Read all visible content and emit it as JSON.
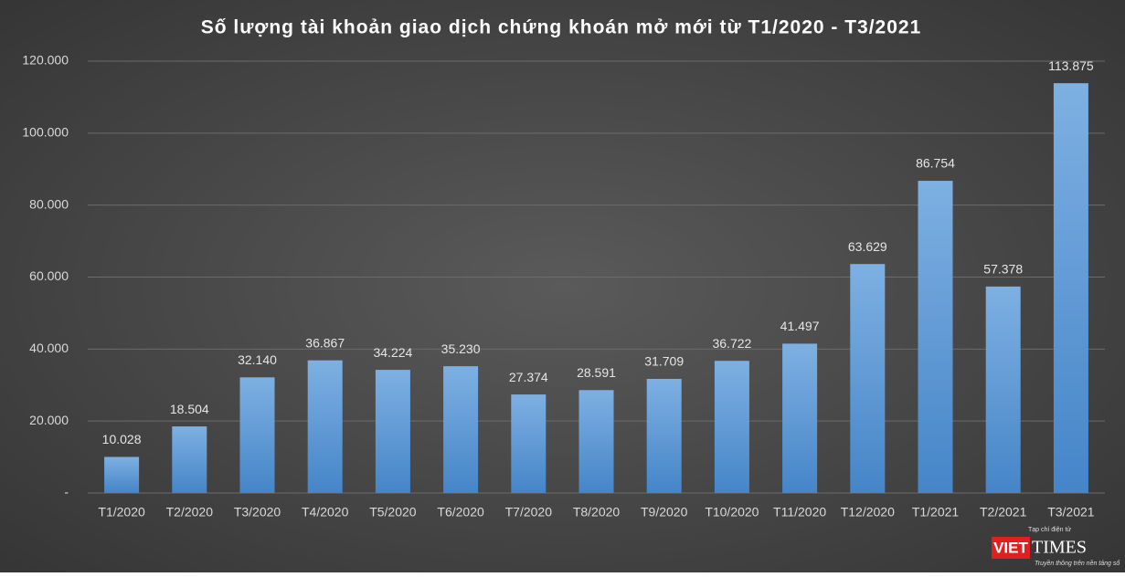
{
  "chart_data": {
    "type": "bar",
    "title": "Số lượng tài khoản giao dịch chứng khoán mở mới từ T1/2020 - T3/2021",
    "categories": [
      "T1/2020",
      "T2/2020",
      "T3/2020",
      "T4/2020",
      "T5/2020",
      "T6/2020",
      "T7/2020",
      "T8/2020",
      "T9/2020",
      "T10/2020",
      "T11/2020",
      "T12/2020",
      "T1/2021",
      "T2/2021",
      "T3/2021"
    ],
    "values": [
      10028,
      18504,
      32140,
      36867,
      34224,
      35230,
      27374,
      28591,
      31709,
      36722,
      41497,
      63629,
      86754,
      57378,
      113875
    ],
    "value_labels": [
      "10.028",
      "18.504",
      "32.140",
      "36.867",
      "34.224",
      "35.230",
      "27.374",
      "28.591",
      "31.709",
      "36.722",
      "41.497",
      "63.629",
      "86.754",
      "57.378",
      "113.875"
    ],
    "color": "#5b9bd5",
    "ylim": [
      0,
      120000
    ],
    "yticks": [
      {
        "value": 0,
        "label": "-"
      },
      {
        "value": 20000,
        "label": "20.000"
      },
      {
        "value": 40000,
        "label": "40.000"
      },
      {
        "value": 60000,
        "label": "60.000"
      },
      {
        "value": 80000,
        "label": "80.000"
      },
      {
        "value": 100000,
        "label": "100.000"
      },
      {
        "value": 120000,
        "label": "120.000"
      }
    ],
    "grid": true
  },
  "logo": {
    "tagline_top": "Tạp chí điện tử",
    "brand_a": "VIET",
    "brand_b": "TIMES",
    "tagline": "Truyền thông trên nền tảng số"
  }
}
